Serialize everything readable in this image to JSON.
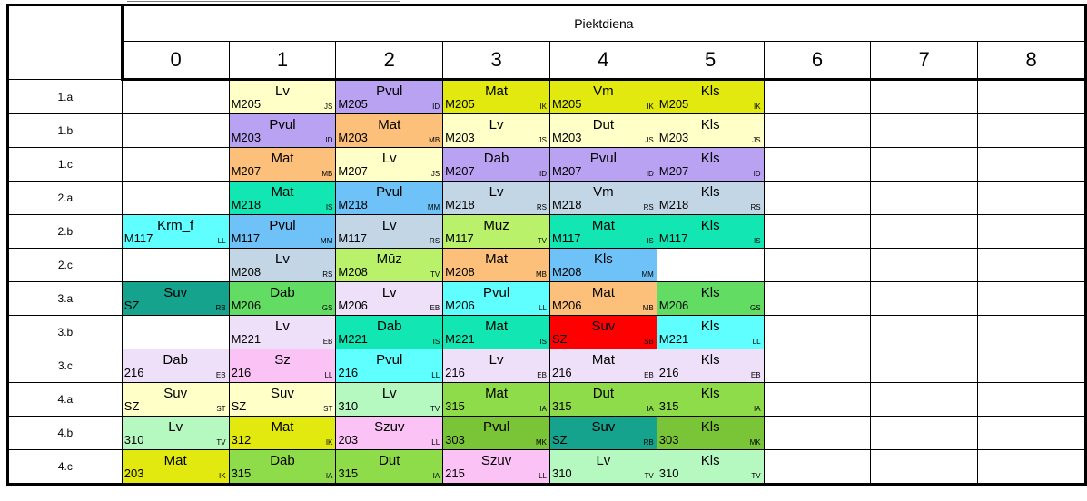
{
  "day_title": "Piektdiena",
  "periods": [
    "0",
    "1",
    "2",
    "3",
    "4",
    "5",
    "6",
    "7",
    "8"
  ],
  "colors": {
    "lv": "#ffffc8",
    "pvul": "#b9a2f2",
    "mat_orange": "#fcc07a",
    "teal": "#12e7b3",
    "blue": "#6fc2f7",
    "steel": "#c3d6e6",
    "cyan": "#5fffff",
    "lime": "#b9f26a",
    "yellow": "#e1e90f",
    "green": "#63dc63",
    "darkteal": "#16a38d",
    "pink": "#fbc2f6",
    "lavender": "#efe0fa",
    "lightgreen": "#b6f9c0",
    "mid_green": "#8fdc4b",
    "olive": "#79c437",
    "red": "#ff0000"
  },
  "rows": [
    {
      "cls": "1.a",
      "cells": [
        null,
        {
          "subj": "Lv",
          "room": "M205",
          "tch": "JS",
          "color": "#ffffc8"
        },
        {
          "subj": "Pvul",
          "room": "M205",
          "tch": "ID",
          "color": "#b9a2f2"
        },
        {
          "subj": "Mat",
          "room": "M205",
          "tch": "IK",
          "color": "#e1e90f"
        },
        {
          "subj": "Vm",
          "room": "M205",
          "tch": "IK",
          "color": "#e1e90f"
        },
        {
          "subj": "Kls",
          "room": "M205",
          "tch": "IK",
          "color": "#e1e90f"
        },
        null,
        null,
        null
      ]
    },
    {
      "cls": "1.b",
      "cells": [
        null,
        {
          "subj": "Pvul",
          "room": "M203",
          "tch": "ID",
          "color": "#b9a2f2"
        },
        {
          "subj": "Mat",
          "room": "M203",
          "tch": "MB",
          "color": "#fcc07a"
        },
        {
          "subj": "Lv",
          "room": "M203",
          "tch": "JS",
          "color": "#ffffc8"
        },
        {
          "subj": "Dut",
          "room": "M203",
          "tch": "JS",
          "color": "#ffffc8"
        },
        {
          "subj": "Kls",
          "room": "M203",
          "tch": "JS",
          "color": "#ffffc8"
        },
        null,
        null,
        null
      ]
    },
    {
      "cls": "1.c",
      "cells": [
        null,
        {
          "subj": "Mat",
          "room": "M207",
          "tch": "MB",
          "color": "#fcc07a"
        },
        {
          "subj": "Lv",
          "room": "M207",
          "tch": "JS",
          "color": "#ffffc8"
        },
        {
          "subj": "Dab",
          "room": "M207",
          "tch": "ID",
          "color": "#b9a2f2"
        },
        {
          "subj": "Pvul",
          "room": "M207",
          "tch": "ID",
          "color": "#b9a2f2"
        },
        {
          "subj": "Kls",
          "room": "M207",
          "tch": "ID",
          "color": "#b9a2f2"
        },
        null,
        null,
        null
      ]
    },
    {
      "cls": "2.a",
      "cells": [
        null,
        {
          "subj": "Mat",
          "room": "M218",
          "tch": "IS",
          "color": "#12e7b3"
        },
        {
          "subj": "Pvul",
          "room": "M218",
          "tch": "MM",
          "color": "#6fc2f7"
        },
        {
          "subj": "Lv",
          "room": "M218",
          "tch": "RS",
          "color": "#c3d6e6"
        },
        {
          "subj": "Vm",
          "room": "M218",
          "tch": "RS",
          "color": "#c3d6e6"
        },
        {
          "subj": "Kls",
          "room": "M218",
          "tch": "RS",
          "color": "#c3d6e6"
        },
        null,
        null,
        null
      ]
    },
    {
      "cls": "2.b",
      "cells": [
        {
          "subj": "Krm_f",
          "room": "M117",
          "tch": "LL",
          "color": "#5fffff"
        },
        {
          "subj": "Pvul",
          "room": "M117",
          "tch": "MM",
          "color": "#6fc2f7"
        },
        {
          "subj": "Lv",
          "room": "M117",
          "tch": "RS",
          "color": "#c3d6e6"
        },
        {
          "subj": "Mūz",
          "room": "M117",
          "tch": "TV",
          "color": "#b9f26a"
        },
        {
          "subj": "Mat",
          "room": "M117",
          "tch": "IS",
          "color": "#12e7b3"
        },
        {
          "subj": "Kls",
          "room": "M117",
          "tch": "IS",
          "color": "#12e7b3"
        },
        null,
        null,
        null
      ]
    },
    {
      "cls": "2.c",
      "cells": [
        null,
        {
          "subj": "Lv",
          "room": "M208",
          "tch": "RS",
          "color": "#c3d6e6"
        },
        {
          "subj": "Mūz",
          "room": "M208",
          "tch": "TV",
          "color": "#b9f26a"
        },
        {
          "subj": "Mat",
          "room": "M208",
          "tch": "MB",
          "color": "#fcc07a"
        },
        {
          "subj": "Kls",
          "room": "M208",
          "tch": "MM",
          "color": "#6fc2f7"
        },
        null,
        null,
        null,
        null
      ]
    },
    {
      "cls": "3.a",
      "cells": [
        {
          "subj": "Suv",
          "room": "SZ",
          "tch": "RB",
          "color": "#16a38d"
        },
        {
          "subj": "Dab",
          "room": "M206",
          "tch": "GS",
          "color": "#63dc63"
        },
        {
          "subj": "Lv",
          "room": "M206",
          "tch": "EB",
          "color": "#efe0fa"
        },
        {
          "subj": "Pvul",
          "room": "M206",
          "tch": "LL",
          "color": "#5fffff"
        },
        {
          "subj": "Mat",
          "room": "M206",
          "tch": "MB",
          "color": "#fcc07a"
        },
        {
          "subj": "Kls",
          "room": "M206",
          "tch": "GS",
          "color": "#63dc63"
        },
        null,
        null,
        null
      ]
    },
    {
      "cls": "3.b",
      "cells": [
        null,
        {
          "subj": "Lv",
          "room": "M221",
          "tch": "EB",
          "color": "#efe0fa"
        },
        {
          "subj": "Dab",
          "room": "M221",
          "tch": "IS",
          "color": "#12e7b3"
        },
        {
          "subj": "Mat",
          "room": "M221",
          "tch": "IS",
          "color": "#12e7b3"
        },
        {
          "subj": "Suv",
          "room": "SZ",
          "tch": "SB",
          "color": "#ff0000"
        },
        {
          "subj": "Kls",
          "room": "M221",
          "tch": "LL",
          "color": "#5fffff"
        },
        null,
        null,
        null
      ]
    },
    {
      "cls": "3.c",
      "cells": [
        {
          "subj": "Dab",
          "room": "216",
          "tch": "EB",
          "color": "#efe0fa"
        },
        {
          "subj": "Sz",
          "room": "216",
          "tch": "LL",
          "color": "#fbc2f6"
        },
        {
          "subj": "Pvul",
          "room": "216",
          "tch": "LL",
          "color": "#5fffff"
        },
        {
          "subj": "Lv",
          "room": "216",
          "tch": "EB",
          "color": "#efe0fa"
        },
        {
          "subj": "Mat",
          "room": "216",
          "tch": "EB",
          "color": "#efe0fa"
        },
        {
          "subj": "Kls",
          "room": "216",
          "tch": "EB",
          "color": "#efe0fa"
        },
        null,
        null,
        null
      ]
    },
    {
      "cls": "4.a",
      "cells": [
        {
          "subj": "Suv",
          "room": "SZ",
          "tch": "ST",
          "color": "#ffffc8"
        },
        {
          "subj": "Suv",
          "room": "SZ",
          "tch": "ST",
          "color": "#ffffc8"
        },
        {
          "subj": "Lv",
          "room": "310",
          "tch": "TV",
          "color": "#b6f9c0"
        },
        {
          "subj": "Mat",
          "room": "315",
          "tch": "IA",
          "color": "#8fdc4b"
        },
        {
          "subj": "Dut",
          "room": "315",
          "tch": "IA",
          "color": "#8fdc4b"
        },
        {
          "subj": "Kls",
          "room": "315",
          "tch": "IA",
          "color": "#8fdc4b"
        },
        null,
        null,
        null
      ]
    },
    {
      "cls": "4.b",
      "cells": [
        {
          "subj": "Lv",
          "room": "310",
          "tch": "TV",
          "color": "#b6f9c0"
        },
        {
          "subj": "Mat",
          "room": "312",
          "tch": "IK",
          "color": "#e1e90f"
        },
        {
          "subj": "Szuv",
          "room": "203",
          "tch": "LL",
          "color": "#fbc2f6"
        },
        {
          "subj": "Pvul",
          "room": "303",
          "tch": "MK",
          "color": "#79c437"
        },
        {
          "subj": "Suv",
          "room": "SZ",
          "tch": "RB",
          "color": "#16a38d"
        },
        {
          "subj": "Kls",
          "room": "303",
          "tch": "MK",
          "color": "#79c437"
        },
        null,
        null,
        null
      ]
    },
    {
      "cls": "4.c",
      "cells": [
        {
          "subj": "Mat",
          "room": "203",
          "tch": "IK",
          "color": "#e1e90f"
        },
        {
          "subj": "Dab",
          "room": "315",
          "tch": "IA",
          "color": "#8fdc4b"
        },
        {
          "subj": "Dut",
          "room": "315",
          "tch": "IA",
          "color": "#8fdc4b"
        },
        {
          "subj": "Szuv",
          "room": "215",
          "tch": "LL",
          "color": "#fbc2f6"
        },
        {
          "subj": "Lv",
          "room": "310",
          "tch": "TV",
          "color": "#b6f9c0"
        },
        {
          "subj": "Kls",
          "room": "310",
          "tch": "TV",
          "color": "#b6f9c0"
        },
        null,
        null,
        null
      ]
    }
  ]
}
